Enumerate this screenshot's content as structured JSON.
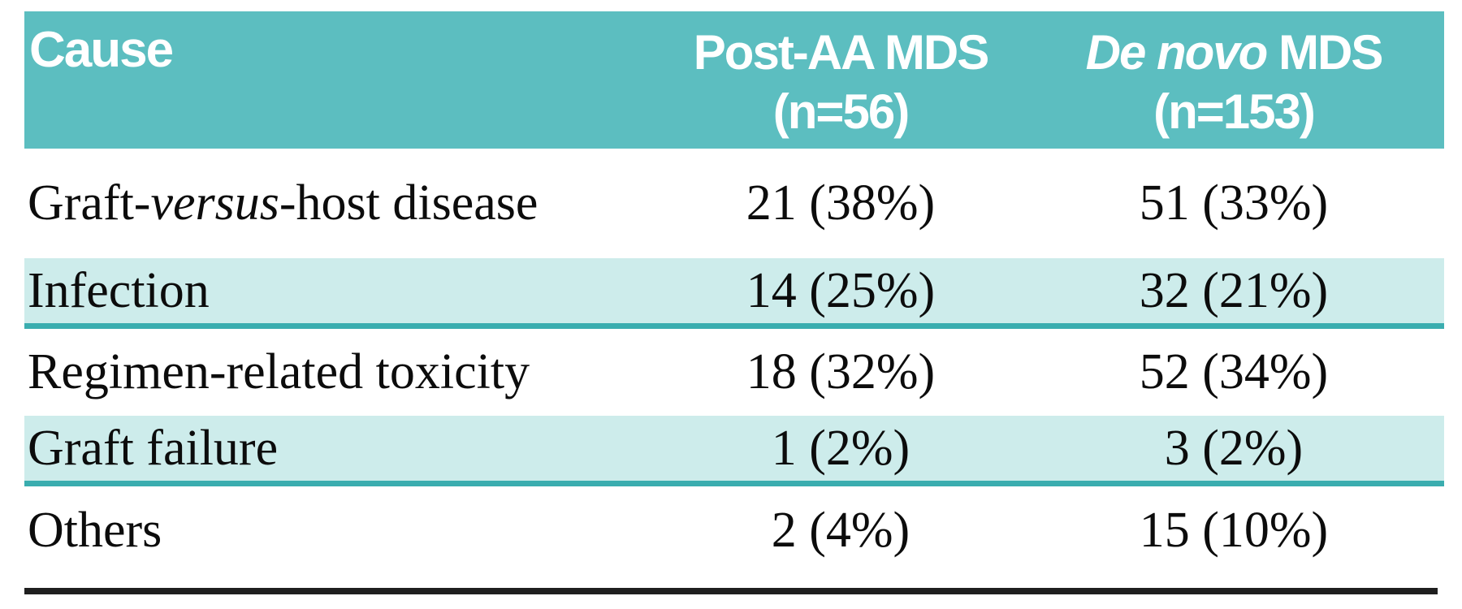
{
  "table": {
    "colors": {
      "header_bg": "#5cbec0",
      "header_text": "#ffffff",
      "shaded_row_bg": "#cdeceb",
      "shaded_row_border": "#3aadaf",
      "body_text": "#0c0c0c",
      "bottom_rule": "#1f1f1f"
    },
    "header": {
      "cause": "Cause",
      "post_aa_line1": "Post-AA MDS",
      "post_aa_line2": "(n=56)",
      "de_novo_italic": "De novo",
      "de_novo_rest": " MDS",
      "de_novo_line2": "(n=153)"
    },
    "rows": [
      {
        "cause_pre": "Graft-",
        "cause_italic": "versus",
        "cause_post": "-host disease",
        "post_aa": "21 (38%)",
        "de_novo": "51 (33%)"
      },
      {
        "cause_pre": "Infection",
        "cause_italic": "",
        "cause_post": "",
        "post_aa": "14 (25%)",
        "de_novo": "32 (21%)"
      },
      {
        "cause_pre": "Regimen-related toxicity",
        "cause_italic": "",
        "cause_post": "",
        "post_aa": "18 (32%)",
        "de_novo": "52 (34%)"
      },
      {
        "cause_pre": "Graft failure",
        "cause_italic": "",
        "cause_post": "",
        "post_aa": "1 (2%)",
        "de_novo": "3 (2%)"
      },
      {
        "cause_pre": "Others",
        "cause_italic": "",
        "cause_post": "",
        "post_aa": "2 (4%)",
        "de_novo": "15 (10%)"
      }
    ]
  }
}
